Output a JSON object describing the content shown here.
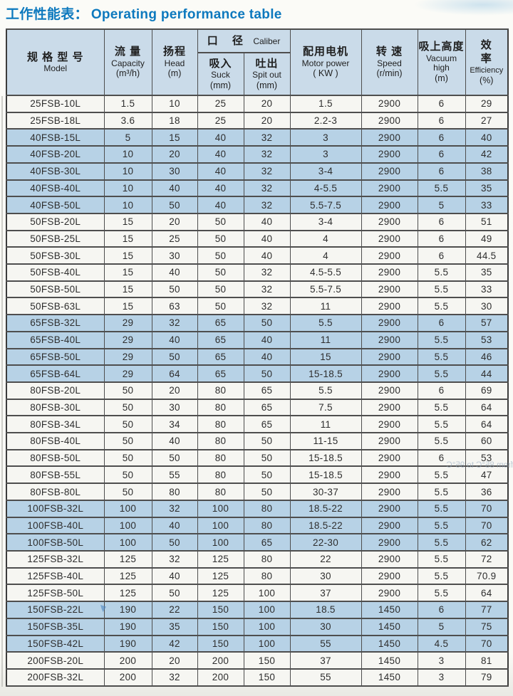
{
  "title": {
    "zh": "工作性能表：",
    "en": "Operating performance table"
  },
  "colors": {
    "title_blue": "#0d79be",
    "header_bg": "#cadbe9",
    "shaded_row_bg": "#b7d2e6",
    "plain_row_bg": "#f6f6f2",
    "grid_line": "#4e4e4e"
  },
  "table": {
    "columns": [
      {
        "key": "model",
        "zh": "规 格 型 号",
        "en": "Model",
        "unit": ""
      },
      {
        "key": "capacity",
        "zh": "流 量",
        "en": "Capacity",
        "unit": "(m³/h)"
      },
      {
        "key": "head",
        "zh": "扬程",
        "en": "Head",
        "unit": "(m)"
      },
      {
        "key": "caliber",
        "zh": "口 径",
        "en": "Caliber",
        "unit": ""
      },
      {
        "key": "suck",
        "zh": "吸入",
        "en": "Suck",
        "unit": "(mm)"
      },
      {
        "key": "spit",
        "zh": "吐出",
        "en": "Spit out",
        "unit": "(mm)"
      },
      {
        "key": "motor",
        "zh": "配用电机",
        "en": "Motor power",
        "unit": "( KW )"
      },
      {
        "key": "speed",
        "zh": "转 速",
        "en": "Speed",
        "unit": "(r/min)"
      },
      {
        "key": "vacuum",
        "zh": "吸上高度",
        "en": "Vacuum high",
        "unit": "(m)"
      },
      {
        "key": "efficiency",
        "zh": "效\n率",
        "en": "Efficiency",
        "unit": "(%)"
      }
    ],
    "rows": [
      {
        "model": "25FSB-10L",
        "values": [
          "1.5",
          "10",
          "25",
          "20",
          "1.5",
          "2900",
          "6",
          "29"
        ],
        "shaded": false
      },
      {
        "model": "25FSB-18L",
        "values": [
          "3.6",
          "18",
          "25",
          "20",
          "2.2-3",
          "2900",
          "6",
          "27"
        ],
        "shaded": false
      },
      {
        "model": "40FSB-15L",
        "values": [
          "5",
          "15",
          "40",
          "32",
          "3",
          "2900",
          "6",
          "40"
        ],
        "shaded": true
      },
      {
        "model": "40FSB-20L",
        "values": [
          "10",
          "20",
          "40",
          "32",
          "3",
          "2900",
          "6",
          "42"
        ],
        "shaded": true
      },
      {
        "model": "40FSB-30L",
        "values": [
          "10",
          "30",
          "40",
          "32",
          "3-4",
          "2900",
          "6",
          "38"
        ],
        "shaded": true
      },
      {
        "model": "40FSB-40L",
        "values": [
          "10",
          "40",
          "40",
          "32",
          "4-5.5",
          "2900",
          "5.5",
          "35"
        ],
        "shaded": true
      },
      {
        "model": "40FSB-50L",
        "values": [
          "10",
          "50",
          "40",
          "32",
          "5.5-7.5",
          "2900",
          "5",
          "33"
        ],
        "shaded": true
      },
      {
        "model": "50FSB-20L",
        "values": [
          "15",
          "20",
          "50",
          "40",
          "3-4",
          "2900",
          "6",
          "51"
        ],
        "shaded": false
      },
      {
        "model": "50FSB-25L",
        "values": [
          "15",
          "25",
          "50",
          "40",
          "4",
          "2900",
          "6",
          "49"
        ],
        "shaded": false
      },
      {
        "model": "50FSB-30L",
        "values": [
          "15",
          "30",
          "50",
          "40",
          "4",
          "2900",
          "6",
          "44.5"
        ],
        "shaded": false
      },
      {
        "model": "50FSB-40L",
        "values": [
          "15",
          "40",
          "50",
          "32",
          "4.5-5.5",
          "2900",
          "5.5",
          "35"
        ],
        "shaded": false
      },
      {
        "model": "50FSB-50L",
        "values": [
          "15",
          "50",
          "50",
          "32",
          "5.5-7.5",
          "2900",
          "5.5",
          "33"
        ],
        "shaded": false
      },
      {
        "model": "50FSB-63L",
        "values": [
          "15",
          "63",
          "50",
          "32",
          "11",
          "2900",
          "5.5",
          "30"
        ],
        "shaded": false
      },
      {
        "model": "65FSB-32L",
        "values": [
          "29",
          "32",
          "65",
          "50",
          "5.5",
          "2900",
          "6",
          "57"
        ],
        "shaded": true
      },
      {
        "model": "65FSB-40L",
        "values": [
          "29",
          "40",
          "65",
          "40",
          "11",
          "2900",
          "5.5",
          "53"
        ],
        "shaded": true
      },
      {
        "model": "65FSB-50L",
        "values": [
          "29",
          "50",
          "65",
          "40",
          "15",
          "2900",
          "5.5",
          "46"
        ],
        "shaded": true
      },
      {
        "model": "65FSB-64L",
        "values": [
          "29",
          "64",
          "65",
          "50",
          "15-18.5",
          "2900",
          "5.5",
          "44"
        ],
        "shaded": true
      },
      {
        "model": "80FSB-20L",
        "values": [
          "50",
          "20",
          "80",
          "65",
          "5.5",
          "2900",
          "6",
          "69"
        ],
        "shaded": false
      },
      {
        "model": "80FSB-30L",
        "values": [
          "50",
          "30",
          "80",
          "65",
          "7.5",
          "2900",
          "5.5",
          "64"
        ],
        "shaded": false
      },
      {
        "model": "80FSB-34L",
        "values": [
          "50",
          "34",
          "80",
          "65",
          "11",
          "2900",
          "5.5",
          "64"
        ],
        "shaded": false
      },
      {
        "model": "80FSB-40L",
        "values": [
          "50",
          "40",
          "80",
          "50",
          "11-15",
          "2900",
          "5.5",
          "60"
        ],
        "shaded": false
      },
      {
        "model": "80FSB-50L",
        "values": [
          "50",
          "50",
          "80",
          "50",
          "15-18.5",
          "2900",
          "6",
          "53"
        ],
        "shaded": false
      },
      {
        "model": "80FSB-55L",
        "values": [
          "50",
          "55",
          "80",
          "50",
          "15-18.5",
          "2900",
          "5.5",
          "47"
        ],
        "shaded": false
      },
      {
        "model": "80FSB-80L",
        "values": [
          "50",
          "80",
          "80",
          "50",
          "30-37",
          "2900",
          "5.5",
          "36"
        ],
        "shaded": false
      },
      {
        "model": "100FSB-32L",
        "values": [
          "100",
          "32",
          "100",
          "80",
          "18.5-22",
          "2900",
          "5.5",
          "70"
        ],
        "shaded": true
      },
      {
        "model": "100FSB-40L",
        "values": [
          "100",
          "40",
          "100",
          "80",
          "18.5-22",
          "2900",
          "5.5",
          "70"
        ],
        "shaded": true
      },
      {
        "model": "100FSB-50L",
        "values": [
          "100",
          "50",
          "100",
          "65",
          "22-30",
          "2900",
          "5.5",
          "62"
        ],
        "shaded": true
      },
      {
        "model": "125FSB-32L",
        "values": [
          "125",
          "32",
          "125",
          "80",
          "22",
          "2900",
          "5.5",
          "72"
        ],
        "shaded": false
      },
      {
        "model": "125FSB-40L",
        "values": [
          "125",
          "40",
          "125",
          "80",
          "30",
          "2900",
          "5.5",
          "70.9"
        ],
        "shaded": false
      },
      {
        "model": "125FSB-50L",
        "values": [
          "125",
          "50",
          "125",
          "100",
          "37",
          "2900",
          "5.5",
          "64"
        ],
        "shaded": false
      },
      {
        "model": "150FSB-22L",
        "values": [
          "190",
          "22",
          "150",
          "100",
          "18.5",
          "1450",
          "6",
          "77"
        ],
        "shaded": true
      },
      {
        "model": "150FSB-35L",
        "values": [
          "190",
          "35",
          "150",
          "100",
          "30",
          "1450",
          "5",
          "75"
        ],
        "shaded": true
      },
      {
        "model": "150FSB-42L",
        "values": [
          "190",
          "42",
          "150",
          "100",
          "55",
          "1450",
          "4.5",
          "70"
        ],
        "shaded": true
      },
      {
        "model": "200FSB-20L",
        "values": [
          "200",
          "20",
          "200",
          "150",
          "37",
          "1450",
          "3",
          "81"
        ],
        "shaded": false
      },
      {
        "model": "200FSB-32L",
        "values": [
          "200",
          "32",
          "200",
          "150",
          "55",
          "1450",
          "3",
          "79"
        ],
        "shaded": false
      }
    ]
  },
  "artifacts": {
    "bleed_through_text": "from 85°C to 95°C"
  }
}
